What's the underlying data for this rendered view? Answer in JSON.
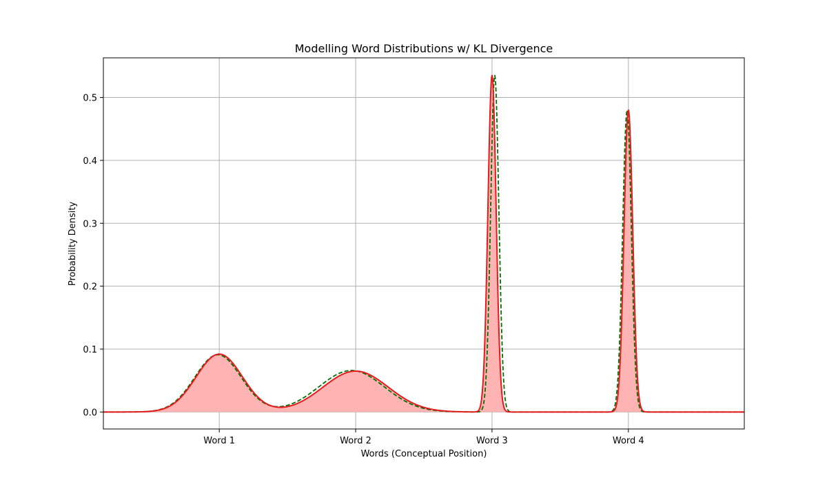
{
  "chart_data": {
    "type": "area",
    "title": "Modelling Word Distributions w/ KL Divergence",
    "xlabel": "Words (Conceptual Position)",
    "ylabel": "Probability Density",
    "xlim": [
      -0.85,
      3.85
    ],
    "ylim": [
      -0.027,
      0.563
    ],
    "grid": true,
    "x_ticks": [
      {
        "value": 0,
        "label": "Word 1"
      },
      {
        "value": 1,
        "label": "Word 2"
      },
      {
        "value": 2,
        "label": "Word 3"
      },
      {
        "value": 3,
        "label": "Word 4"
      }
    ],
    "y_ticks": [
      0.0,
      0.1,
      0.2,
      0.3,
      0.4,
      0.5
    ],
    "series": [
      {
        "style": "solid",
        "color": "#e41a1c",
        "fill": "#ffb3b3",
        "components": [
          {
            "mean": 0.0,
            "sd": 0.17,
            "peak": 0.092
          },
          {
            "mean": 1.0,
            "sd": 0.24,
            "peak": 0.065
          },
          {
            "mean": 2.0,
            "sd": 0.03,
            "peak": 0.535
          },
          {
            "mean": 3.0,
            "sd": 0.032,
            "peak": 0.48
          }
        ]
      },
      {
        "style": "dashed",
        "color": "#007000",
        "components": [
          {
            "mean": -0.01,
            "sd": 0.17,
            "peak": 0.091
          },
          {
            "mean": 0.97,
            "sd": 0.24,
            "peak": 0.066
          },
          {
            "mean": 2.02,
            "sd": 0.03,
            "peak": 0.535
          },
          {
            "mean": 2.99,
            "sd": 0.032,
            "peak": 0.478
          }
        ]
      }
    ]
  }
}
